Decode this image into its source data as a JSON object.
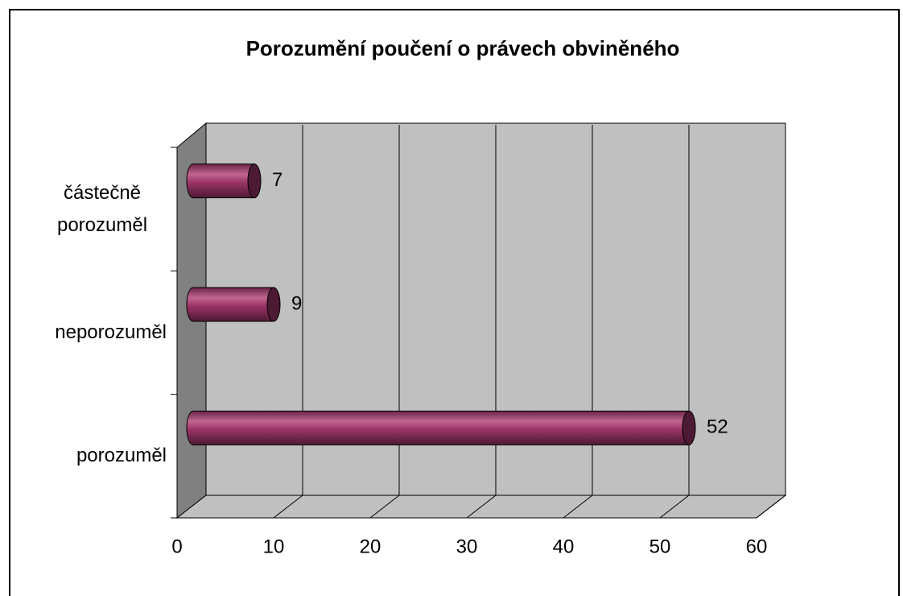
{
  "chart_data": {
    "type": "bar3d_horizontal",
    "title": "Porozumění poučení o právech obviněného",
    "categories": [
      "porozuměl",
      "neporozuměl",
      "částečně porozuměl"
    ],
    "values": [
      52,
      9,
      7
    ],
    "color": "#993366",
    "xlim": [
      0,
      60
    ],
    "xticks": [
      0,
      10,
      20,
      30,
      40,
      50,
      60
    ],
    "grid": true
  }
}
